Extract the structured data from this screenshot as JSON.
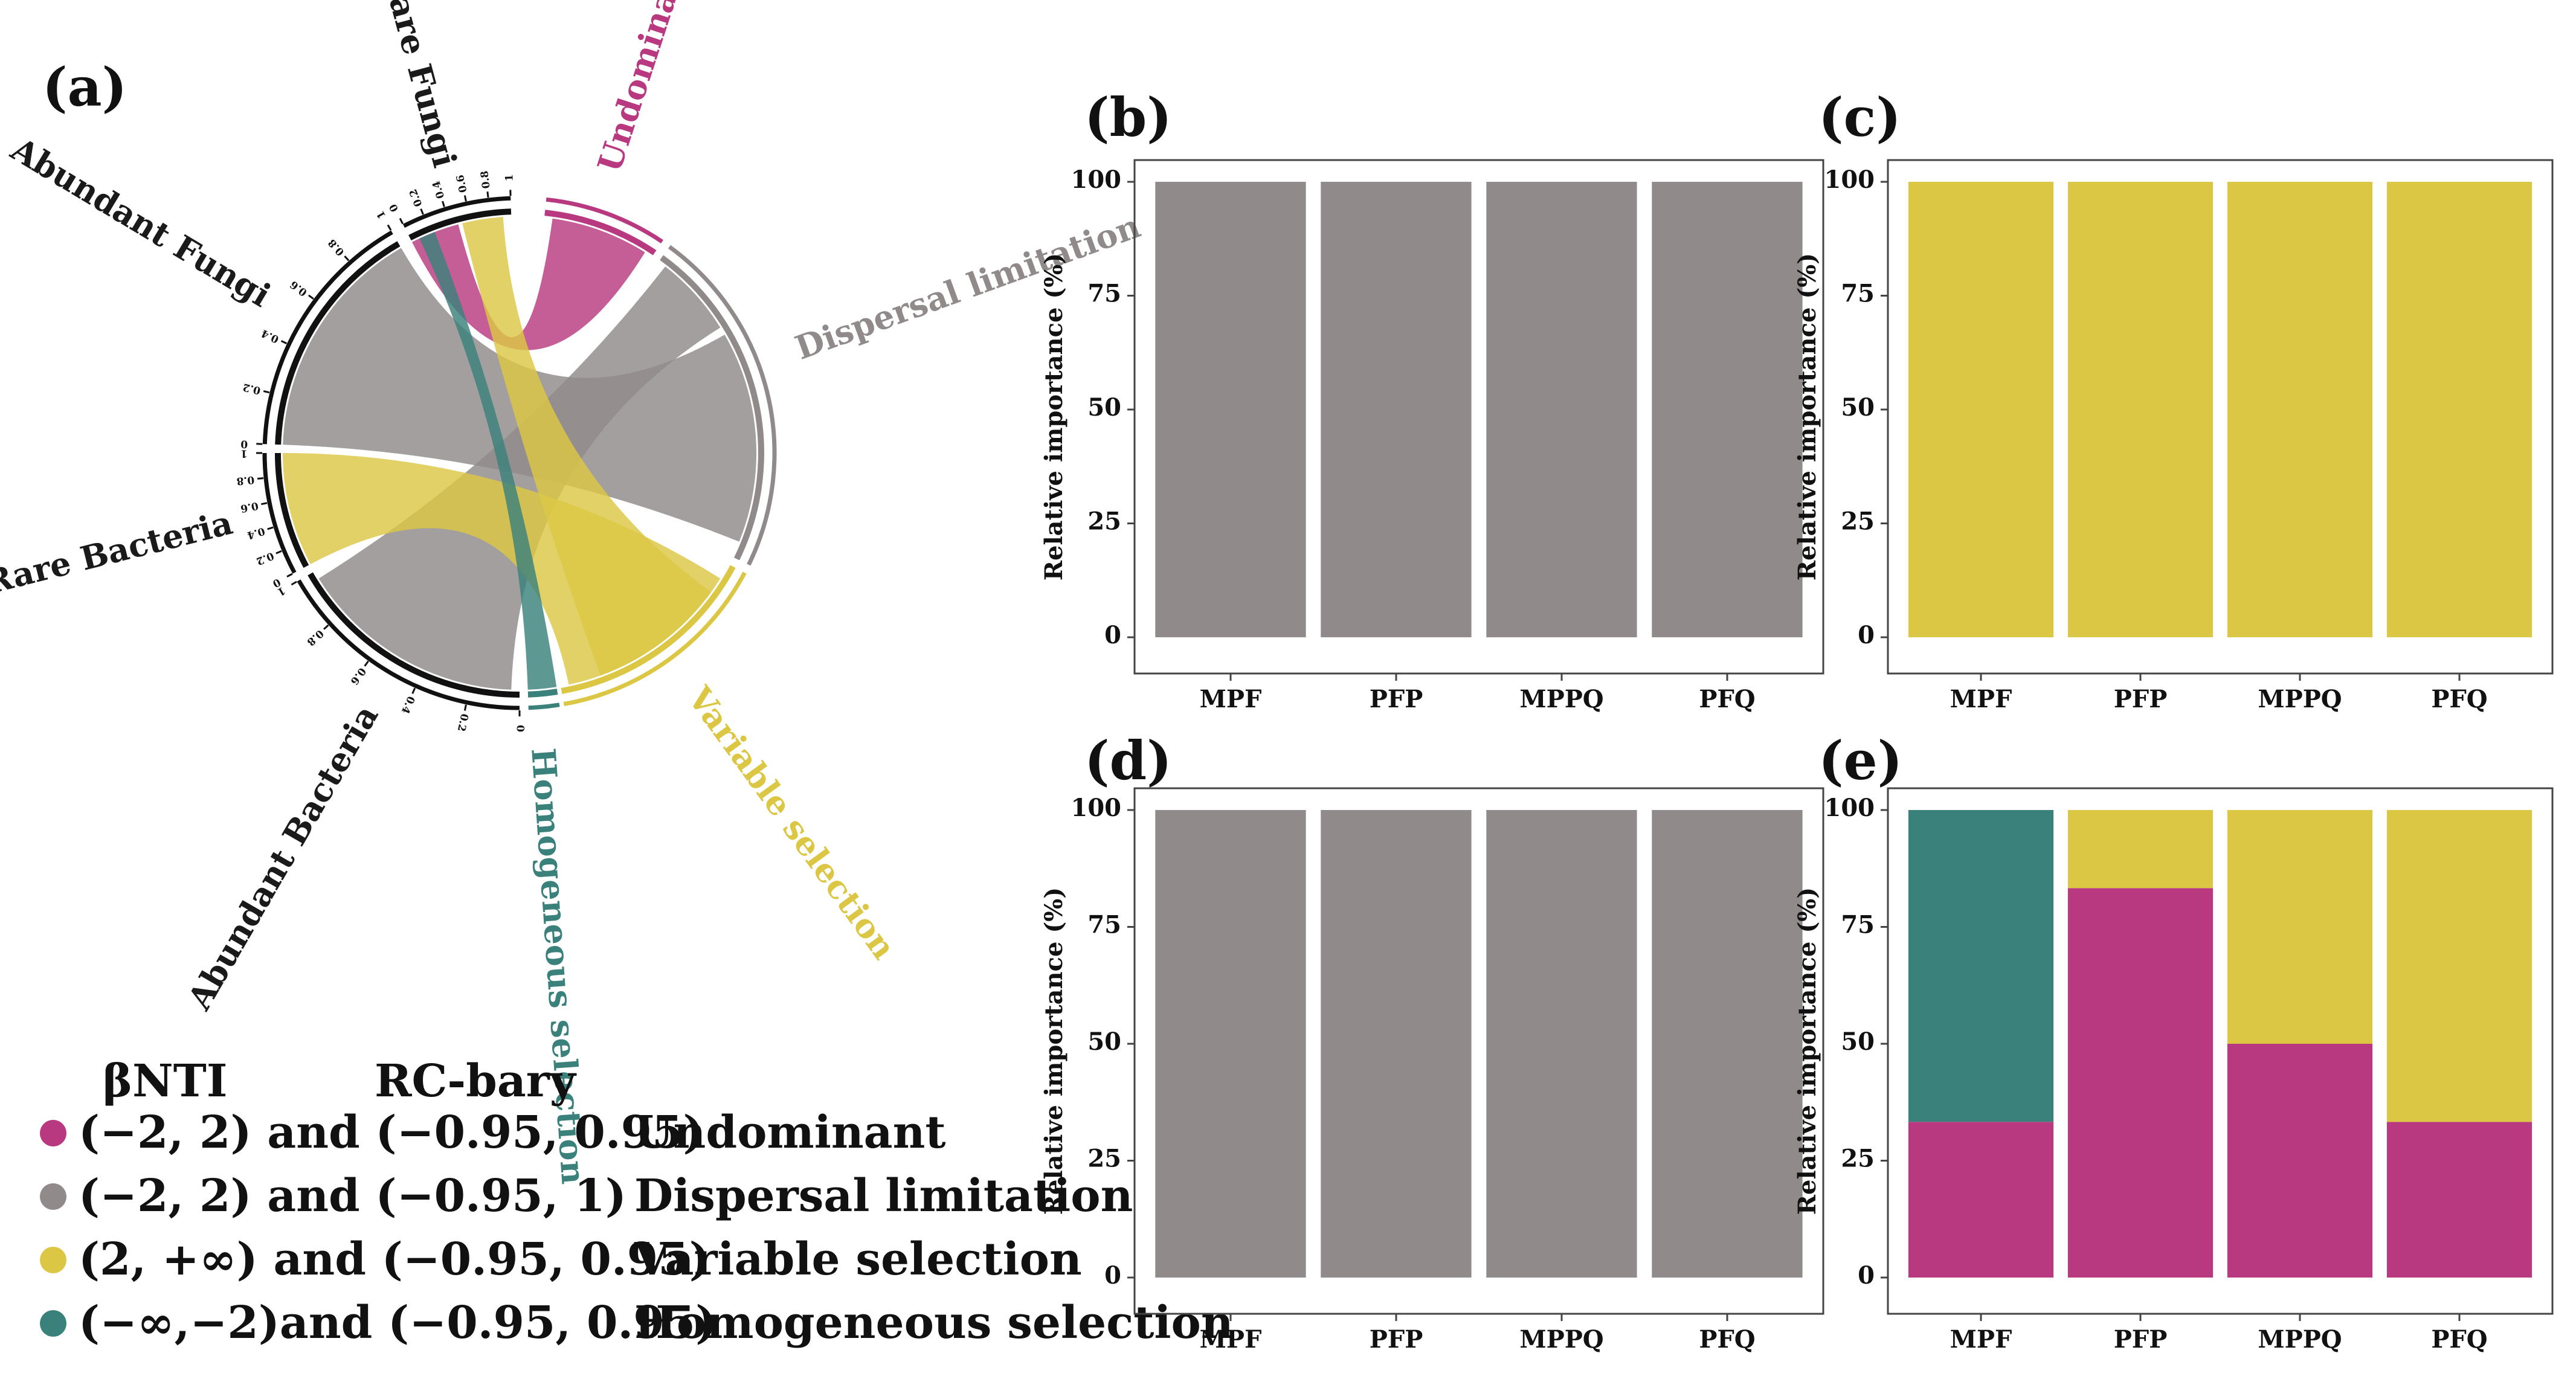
{
  "colors": {
    "undominant": "#b8397f",
    "dispersal": "#908a8a",
    "variable": "#dcc744",
    "homogeneous": "#3a817b",
    "axis": "#111111",
    "frame": "#444444"
  },
  "chord": {
    "panel_label": "(a)",
    "tick_values": [
      "0",
      "0.2",
      "0.4",
      "0.6",
      "0.8",
      "1"
    ],
    "sectors": [
      {
        "name": "Undominant",
        "color_key": "undominant"
      },
      {
        "name": "Dispersal limitation",
        "color_key": "dispersal"
      },
      {
        "name": "Variable selection",
        "color_key": "variable"
      },
      {
        "name": "Homogeneous selection",
        "color_key": "homogeneous"
      },
      {
        "name": "Abundant Bacteria",
        "color_key": "axis"
      },
      {
        "name": "Rare Bacteria",
        "color_key": "axis"
      },
      {
        "name": "Abundant Fungi",
        "color_key": "axis"
      },
      {
        "name": "Rare Fungi",
        "color_key": "axis"
      }
    ]
  },
  "legend": {
    "header_1": "βNTI",
    "header_2": "RC-bary",
    "items": [
      {
        "condition": "(−2, 2)  and (−0.95, 0.95)",
        "process": "Undominant",
        "color_key": "undominant"
      },
      {
        "condition": "(−2, 2)  and (−0.95, 1)",
        "process": "Dispersal limitation",
        "color_key": "dispersal"
      },
      {
        "condition": "(2, +∞) and (−0.95, 0.95)",
        "process": "Variable selection",
        "color_key": "variable"
      },
      {
        "condition": "(−∞,−2)and (−0.95, 0.95)",
        "process": "Homogeneous selection",
        "color_key": "homogeneous"
      }
    ]
  },
  "chart_data": [
    {
      "panel": "(b)",
      "type": "bar",
      "stacked": true,
      "categories": [
        "MPF",
        "PFP",
        "MPPQ",
        "PFQ"
      ],
      "ylabel": "Relative importance (%)",
      "ylim": [
        0,
        100
      ],
      "yticks": [
        "0",
        "25",
        "50",
        "75",
        "100"
      ],
      "series": [
        {
          "color_key": "dispersal",
          "values": [
            100,
            100,
            100,
            100
          ]
        }
      ]
    },
    {
      "panel": "(c)",
      "type": "bar",
      "stacked": true,
      "categories": [
        "MPF",
        "PFP",
        "MPPQ",
        "PFQ"
      ],
      "ylabel": "Relative importance (%)",
      "ylim": [
        0,
        100
      ],
      "yticks": [
        "0",
        "25",
        "50",
        "75",
        "100"
      ],
      "series": [
        {
          "color_key": "variable",
          "values": [
            100,
            100,
            100,
            100
          ]
        }
      ]
    },
    {
      "panel": "(d)",
      "type": "bar",
      "stacked": true,
      "categories": [
        "MPF",
        "PFP",
        "MPPQ",
        "PFQ"
      ],
      "ylabel": "Relative importance (%)",
      "ylim": [
        0,
        100
      ],
      "yticks": [
        "0",
        "25",
        "50",
        "75",
        "100"
      ],
      "series": [
        {
          "color_key": "dispersal",
          "values": [
            100,
            100,
            100,
            100
          ]
        }
      ]
    },
    {
      "panel": "(e)",
      "type": "bar",
      "stacked": true,
      "categories": [
        "MPF",
        "PFP",
        "MPPQ",
        "PFQ"
      ],
      "ylabel": "Relative importance (%)",
      "ylim": [
        0,
        100
      ],
      "yticks": [
        "0",
        "25",
        "50",
        "75",
        "100"
      ],
      "series": [
        {
          "color_key": "undominant",
          "values": [
            33.3,
            83.3,
            50,
            33.3
          ]
        },
        {
          "color_key": "homogeneous",
          "values": [
            66.7,
            0,
            0,
            0
          ]
        },
        {
          "color_key": "variable",
          "values": [
            0,
            16.7,
            50,
            66.7
          ]
        }
      ]
    }
  ]
}
